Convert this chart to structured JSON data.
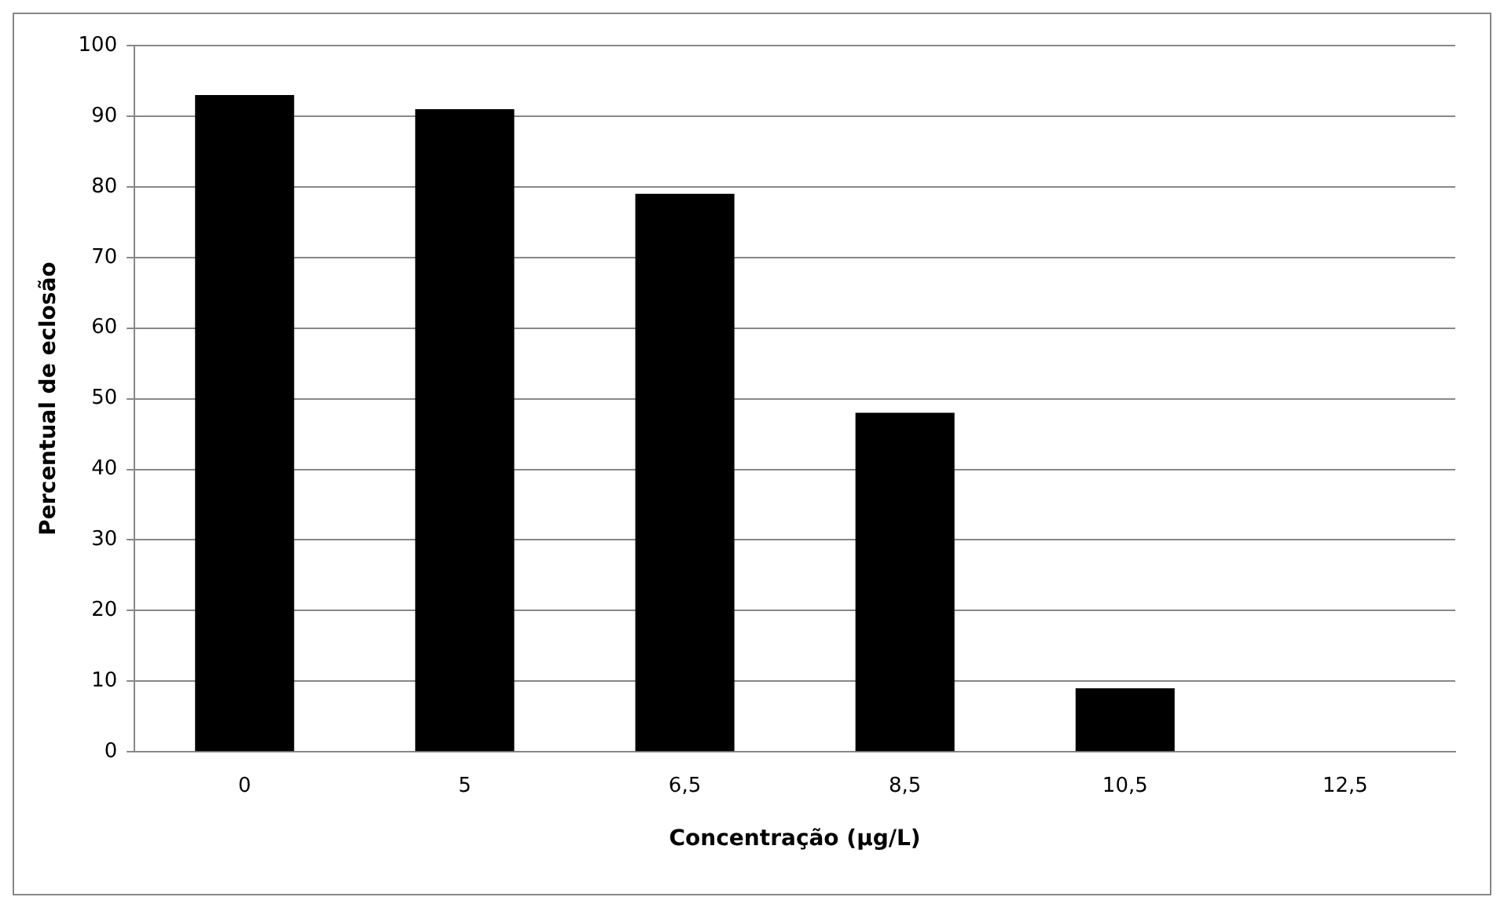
{
  "chart_data": {
    "type": "bar",
    "xlabel": "Concentração (µg/L)",
    "ylabel": "Percentual de eclosão",
    "categories": [
      "0",
      "5",
      "6,5",
      "8,5",
      "10,5",
      "12,5"
    ],
    "values": [
      93,
      91,
      79,
      48,
      9,
      0
    ],
    "color": "#000000",
    "ylim": [
      0,
      100
    ],
    "yticks": [
      0,
      10,
      20,
      30,
      40,
      50,
      60,
      70,
      80,
      90,
      100
    ],
    "grid": "y",
    "legend": false
  }
}
